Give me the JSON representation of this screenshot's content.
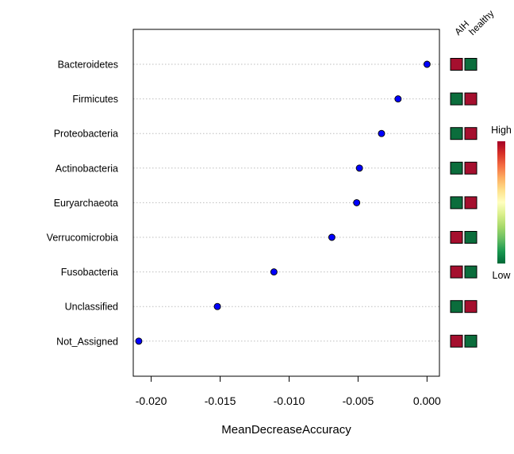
{
  "chart_data": {
    "type": "scatter",
    "title": "",
    "xlabel": "MeanDecreaseAccuracy",
    "ylabel": "",
    "xlim": [
      -0.0213,
      0.0009
    ],
    "xticks": [
      -0.02,
      -0.015,
      -0.01,
      -0.005,
      0.0
    ],
    "xtick_labels": [
      "-0.020",
      "-0.015",
      "-0.010",
      "-0.005",
      "0.000"
    ],
    "grid": "dotted horizontal lines",
    "categories": [
      "Bacteroidetes",
      "Firmicutes",
      "Proteobacteria",
      "Actinobacteria",
      "Euryarchaeota",
      "Verrucomicrobia",
      "Fusobacteria",
      "Unclassified",
      "Not_Assigned"
    ],
    "values": [
      0.0,
      -0.0021,
      -0.0033,
      -0.0049,
      -0.0051,
      -0.0069,
      -0.0111,
      -0.0152,
      -0.0209
    ],
    "marker_color": "#0000ff",
    "heatmap": {
      "columns": [
        "AIH",
        "healthy"
      ],
      "levels": [
        [
          "High",
          "Low"
        ],
        [
          "Low",
          "High"
        ],
        [
          "Low",
          "High"
        ],
        [
          "Low",
          "High"
        ],
        [
          "Low",
          "High"
        ],
        [
          "High",
          "Low"
        ],
        [
          "High",
          "Low"
        ],
        [
          "Low",
          "High"
        ],
        [
          "High",
          "Low"
        ]
      ],
      "colors": {
        "High": "#a50f2e",
        "Low": "#0b6d3c"
      }
    },
    "colorbar": {
      "high_label": "High",
      "low_label": "Low",
      "gradient": [
        "#a50026",
        "#d73027",
        "#f46d43",
        "#fdae61",
        "#fee08b",
        "#ffffbf",
        "#d9ef8b",
        "#a6d96a",
        "#66bd63",
        "#1a9850",
        "#006837"
      ]
    }
  }
}
